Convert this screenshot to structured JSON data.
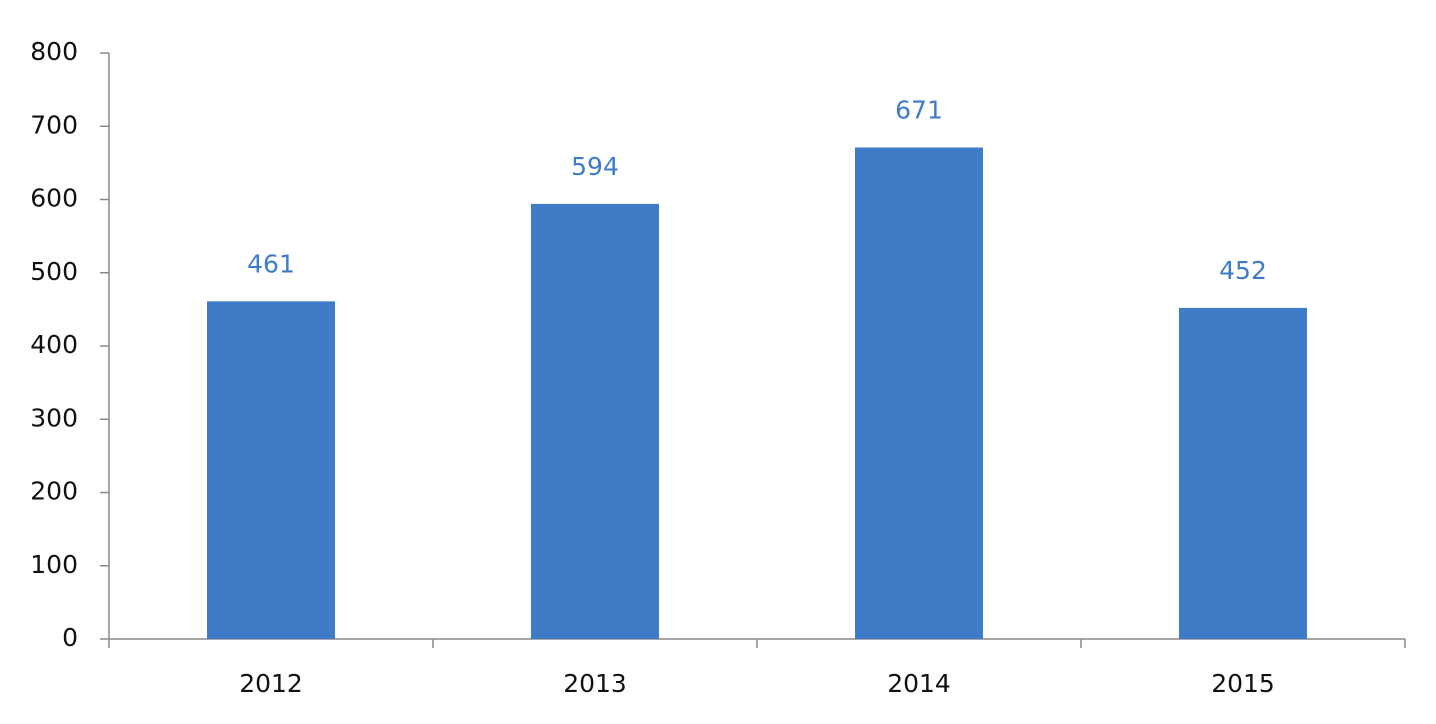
{
  "chart_data": {
    "type": "bar",
    "categories": [
      "2012",
      "2013",
      "2014",
      "2015"
    ],
    "values": [
      461,
      594,
      671,
      452
    ],
    "color": "#3f7cc8",
    "ylim": [
      0,
      800
    ],
    "yticks": [
      0,
      100,
      200,
      300,
      400,
      500,
      600,
      700,
      800
    ],
    "grid": false
  }
}
